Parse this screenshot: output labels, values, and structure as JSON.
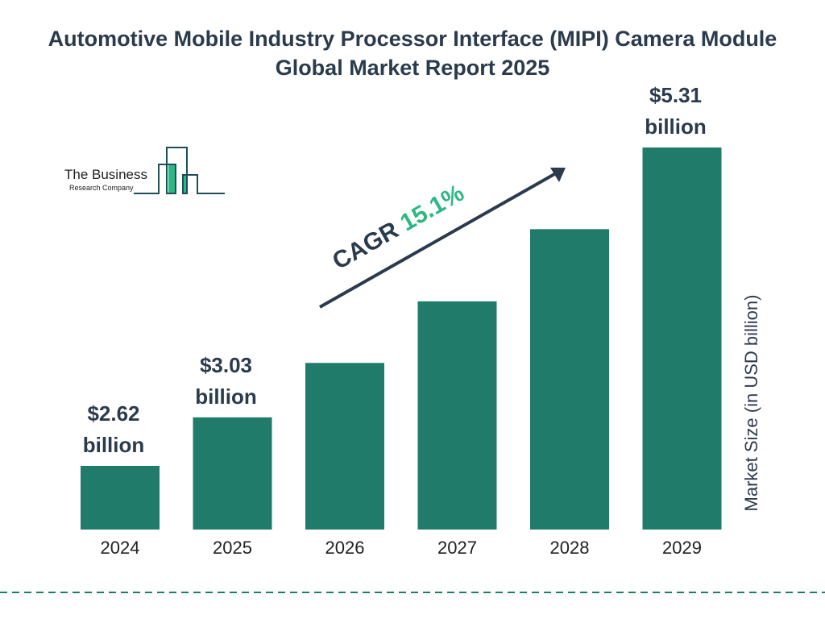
{
  "chart_data": {
    "type": "bar",
    "title": "Automotive Mobile Industry Processor Interface (MIPI) Camera Module Global Market Report 2025",
    "categories": [
      "2024",
      "2025",
      "2026",
      "2027",
      "2028",
      "2029"
    ],
    "values": [
      2.62,
      3.03,
      3.49,
      4.01,
      4.62,
      5.31
    ],
    "data_labels": {
      "0": [
        "$2.62",
        "billion"
      ],
      "1": [
        "$3.03",
        "billion"
      ],
      "5": [
        "$5.31",
        "billion"
      ]
    },
    "xlabel": "",
    "ylabel": "Market Size (in USD billion)",
    "grid": false,
    "annotation": {
      "prefix": "CAGR",
      "value": "15.1%"
    },
    "colors": {
      "bar": "#217b6b",
      "text": "#2a3b4d",
      "accent": "#2db784",
      "dash": "#217b6b"
    }
  },
  "logo": {
    "line1": "The Business",
    "line2": "Research Company"
  }
}
